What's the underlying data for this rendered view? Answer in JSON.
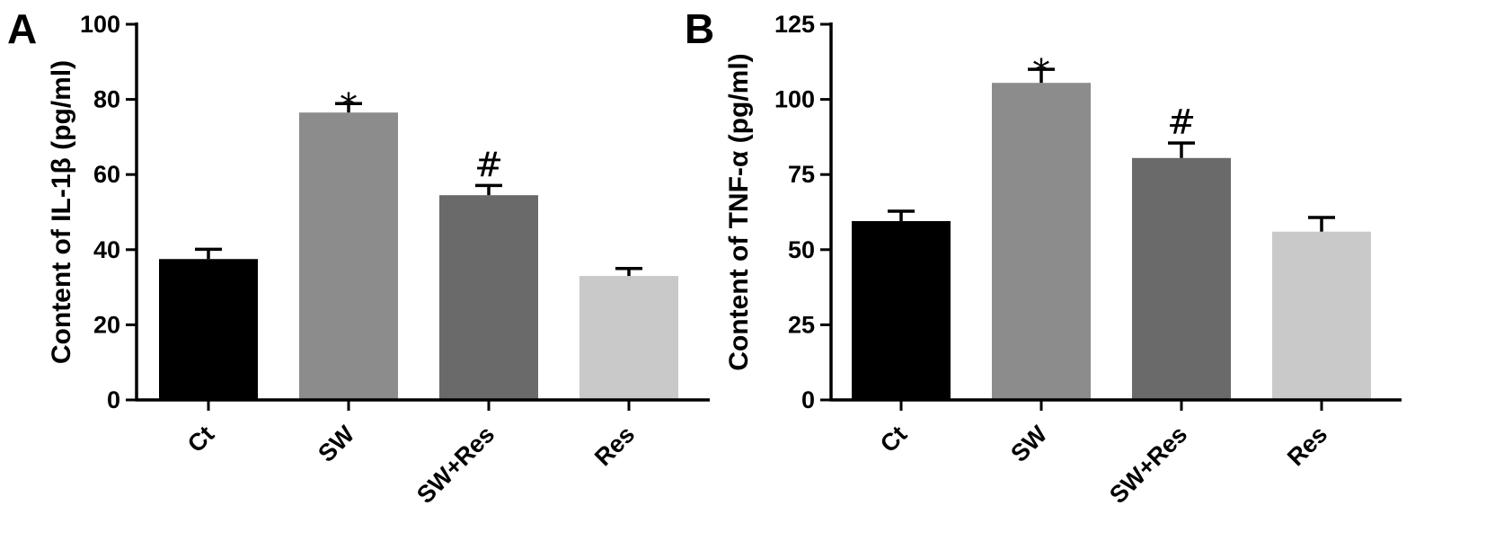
{
  "chart_data": [
    {
      "type": "bar",
      "panel_label": "A",
      "ylabel": "Content of IL-1β (pg/ml)",
      "categories": [
        "Ct",
        "SW",
        "SW+Res",
        "Res"
      ],
      "values": [
        37.5,
        76.5,
        54.5,
        33.0
      ],
      "errors": [
        2.6,
        2.4,
        2.6,
        2.0
      ],
      "annotations": [
        "",
        "*",
        "#",
        ""
      ],
      "colors": [
        "#000000",
        "#8c8c8c",
        "#6a6a6a",
        "#c9c9c9"
      ],
      "ylim": [
        0,
        100
      ],
      "yticks": [
        "0",
        "20",
        "40",
        "60",
        "80",
        "100"
      ],
      "grid": false
    },
    {
      "type": "bar",
      "panel_label": "B",
      "ylabel": "Content of TNF-α (pg/ml)",
      "categories": [
        "Ct",
        "SW",
        "SW+Res",
        "Res"
      ],
      "values": [
        59.5,
        105.5,
        80.5,
        56.0
      ],
      "errors": [
        3.3,
        4.5,
        5.0,
        4.7
      ],
      "annotations": [
        "",
        "*",
        "#",
        ""
      ],
      "colors": [
        "#000000",
        "#8c8c8c",
        "#6a6a6a",
        "#c9c9c9"
      ],
      "ylim": [
        0,
        125
      ],
      "yticks": [
        "0",
        "25",
        "50",
        "75",
        "100",
        "125"
      ],
      "grid": false
    }
  ]
}
